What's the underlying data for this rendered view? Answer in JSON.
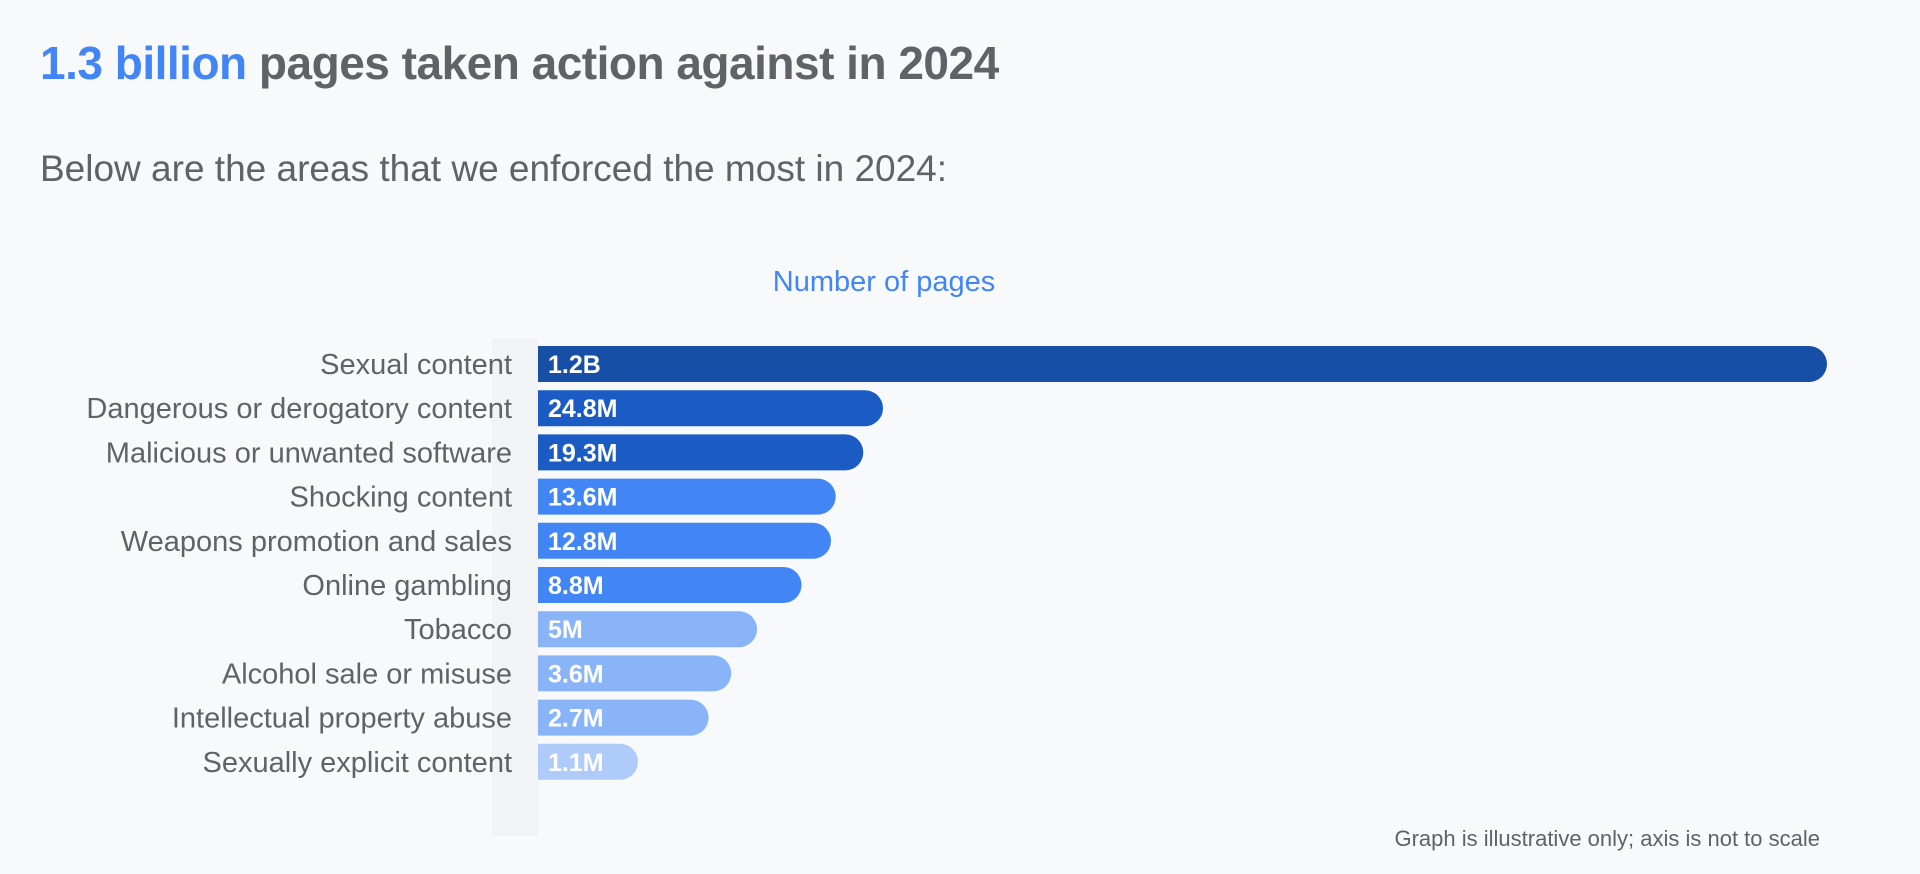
{
  "header": {
    "title_highlight": "1.3 billion",
    "title_rest": " pages taken action against in 2024",
    "subtitle": "Below are the areas that we enforced the most in 2024:"
  },
  "footnote": "Graph is illustrative only; axis is not to scale",
  "colors": {
    "accent": "#4285f4",
    "text": "#5f6368",
    "background": "#f8f9fa",
    "bar_dark": "#174ea6",
    "bar_mid_dark": "#1a5cc4",
    "bar_mid": "#4285f4",
    "bar_light": "#8ab4f8",
    "bar_lightest": "#aecbfa"
  },
  "chart_data": {
    "type": "bar",
    "orientation": "horizontal",
    "title": "Number of pages",
    "xlabel": "",
    "ylabel": "",
    "scale_note": "illustrative, not to scale",
    "categories": [
      "Sexual content",
      "Dangerous or derogatory content",
      "Malicious or unwanted software",
      "Shocking content",
      "Weapons promotion and sales",
      "Online gambling",
      "Tobacco",
      "Alcohol sale or misuse",
      "Intellectual property abuse",
      "Sexually explicit content"
    ],
    "values": [
      1200000000,
      24800000,
      19300000,
      13600000,
      12800000,
      8800000,
      5000000,
      3600000,
      2700000,
      1100000
    ],
    "value_labels": [
      "1.2B",
      "24.8M",
      "19.3M",
      "13.6M",
      "12.8M",
      "8.8M",
      "5M",
      "3.6M",
      "2.7M",
      "1.1M"
    ],
    "bar_colors": [
      "#174ea6",
      "#1a5cc4",
      "#1a5cc4",
      "#4285f4",
      "#4285f4",
      "#4285f4",
      "#8ab4f8",
      "#8ab4f8",
      "#8ab4f8",
      "#aecbfa"
    ]
  }
}
